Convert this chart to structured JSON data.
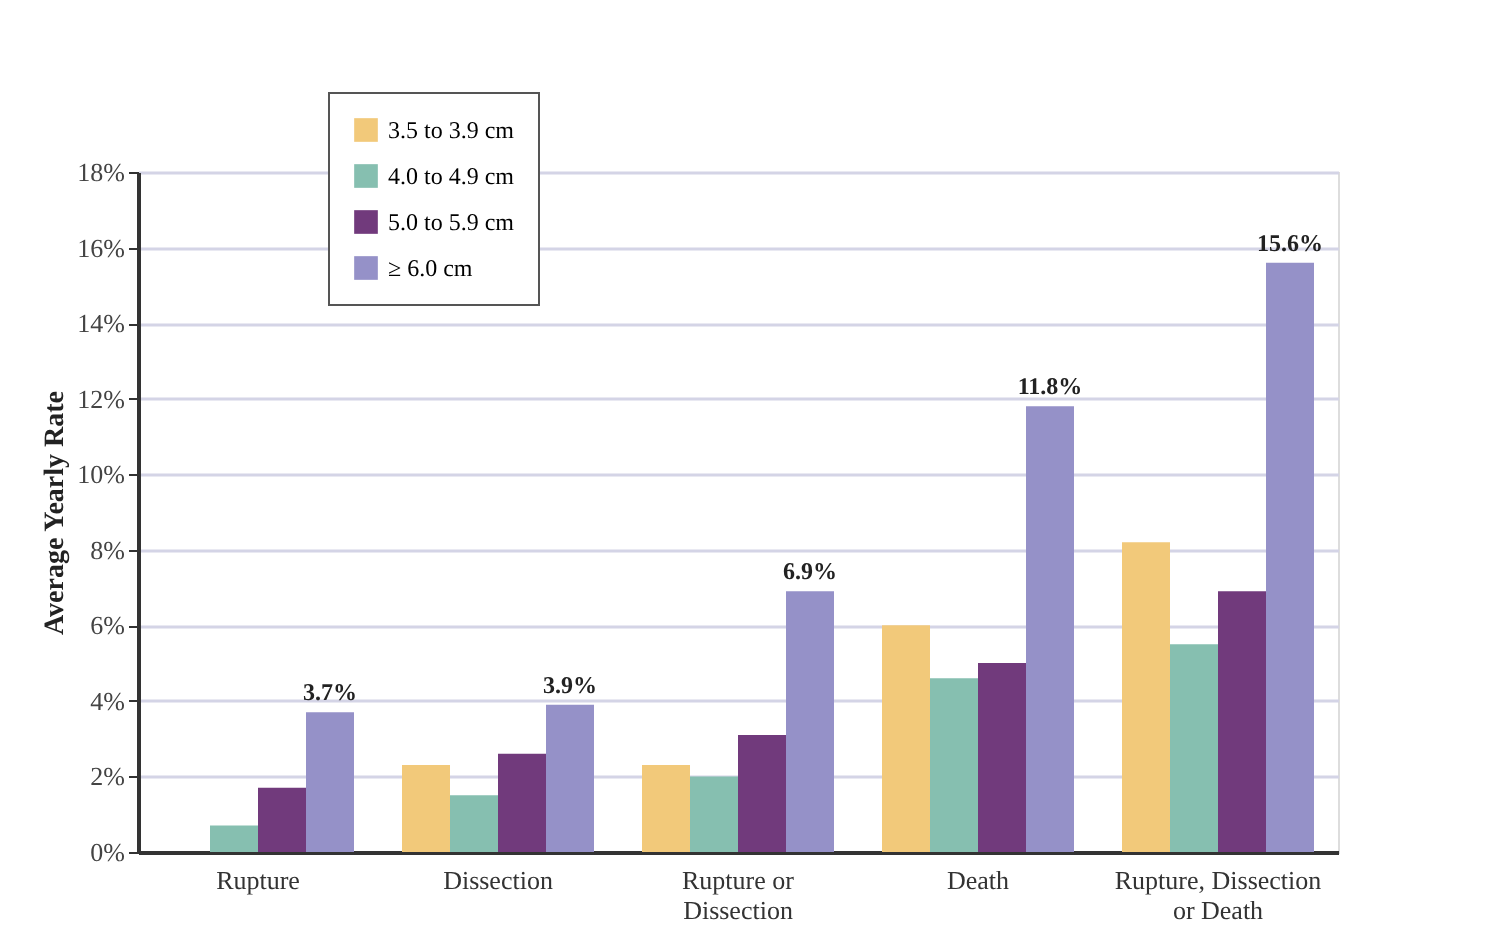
{
  "chart_data": {
    "type": "bar",
    "ylabel": "Average Yearly Rate",
    "categories": [
      "Rupture",
      "Dissection",
      "Rupture or\nDissection",
      "Death",
      "Rupture, Dissection\nor Death"
    ],
    "series": [
      {
        "name": "3.5 to 3.9 cm",
        "color": "#f2c97a",
        "values": [
          null,
          2.3,
          2.3,
          6.0,
          8.2
        ]
      },
      {
        "name": "4.0 to 4.9 cm",
        "color": "#86bfb0",
        "values": [
          0.7,
          1.5,
          2.0,
          4.6,
          5.5
        ]
      },
      {
        "name": "5.0 to 5.9 cm",
        "color": "#713a7c",
        "values": [
          1.7,
          2.6,
          3.1,
          5.0,
          6.9
        ]
      },
      {
        "name": "≥ 6.0 cm",
        "color": "#9591c8",
        "values": [
          3.7,
          3.9,
          6.9,
          11.8,
          15.6
        ],
        "value_labels": [
          "3.7%",
          "3.9%",
          "6.9%",
          "11.8%",
          "15.6%"
        ]
      }
    ],
    "ylim": [
      0,
      18
    ],
    "yticks": [
      {
        "value": 0,
        "label": "0%"
      },
      {
        "value": 2,
        "label": "2%"
      },
      {
        "value": 4,
        "label": "4%"
      },
      {
        "value": 6,
        "label": "6%"
      },
      {
        "value": 8,
        "label": "8%"
      },
      {
        "value": 10,
        "label": "10%"
      },
      {
        "value": 12,
        "label": "12%"
      },
      {
        "value": 14,
        "label": "14%"
      },
      {
        "value": 16,
        "label": "16%"
      },
      {
        "value": 18,
        "label": "18%"
      }
    ],
    "grid": "y",
    "legend": "top"
  }
}
